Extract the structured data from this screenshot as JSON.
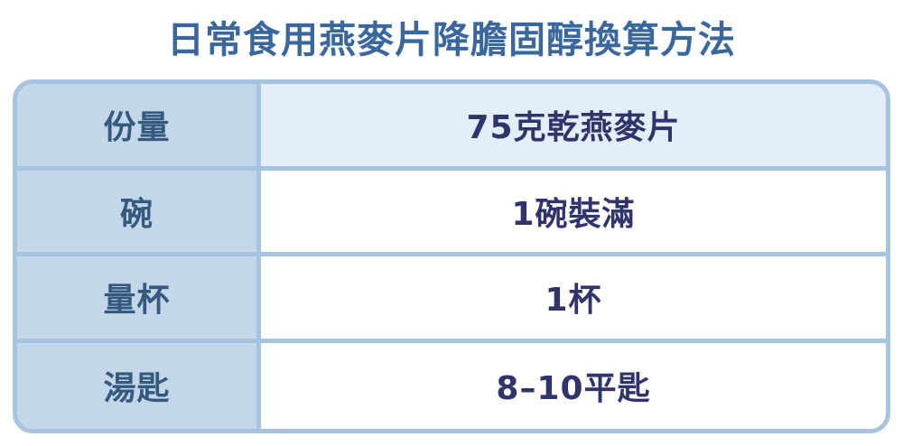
{
  "title": "日常食用燕麥片降膽固醇換算方法",
  "colors": {
    "title_text": "#3a679c",
    "label_text": "#35597f",
    "value_text": "#31336b",
    "border": "#a6c3e0",
    "label_bg": "#c3d7e8",
    "value_highlight_bg": "#e4eef9",
    "value_bg": "#ffffff"
  },
  "table": {
    "rows": [
      {
        "label": "份量",
        "value": "75克乾燕麥片",
        "highlight": true
      },
      {
        "label": "碗",
        "value": "1碗裝滿",
        "highlight": false
      },
      {
        "label": "量杯",
        "value": "1杯",
        "highlight": false
      },
      {
        "label": "湯匙",
        "value": "8–10平匙",
        "highlight": false
      }
    ]
  },
  "chart_data": {
    "type": "table",
    "title": "日常食用燕麥片降膽固醇換算方法",
    "rows": [
      [
        "份量",
        "75克乾燕麥片"
      ],
      [
        "碗",
        "1碗裝滿"
      ],
      [
        "量杯",
        "1杯"
      ],
      [
        "湯匙",
        "8–10平匙"
      ]
    ]
  }
}
